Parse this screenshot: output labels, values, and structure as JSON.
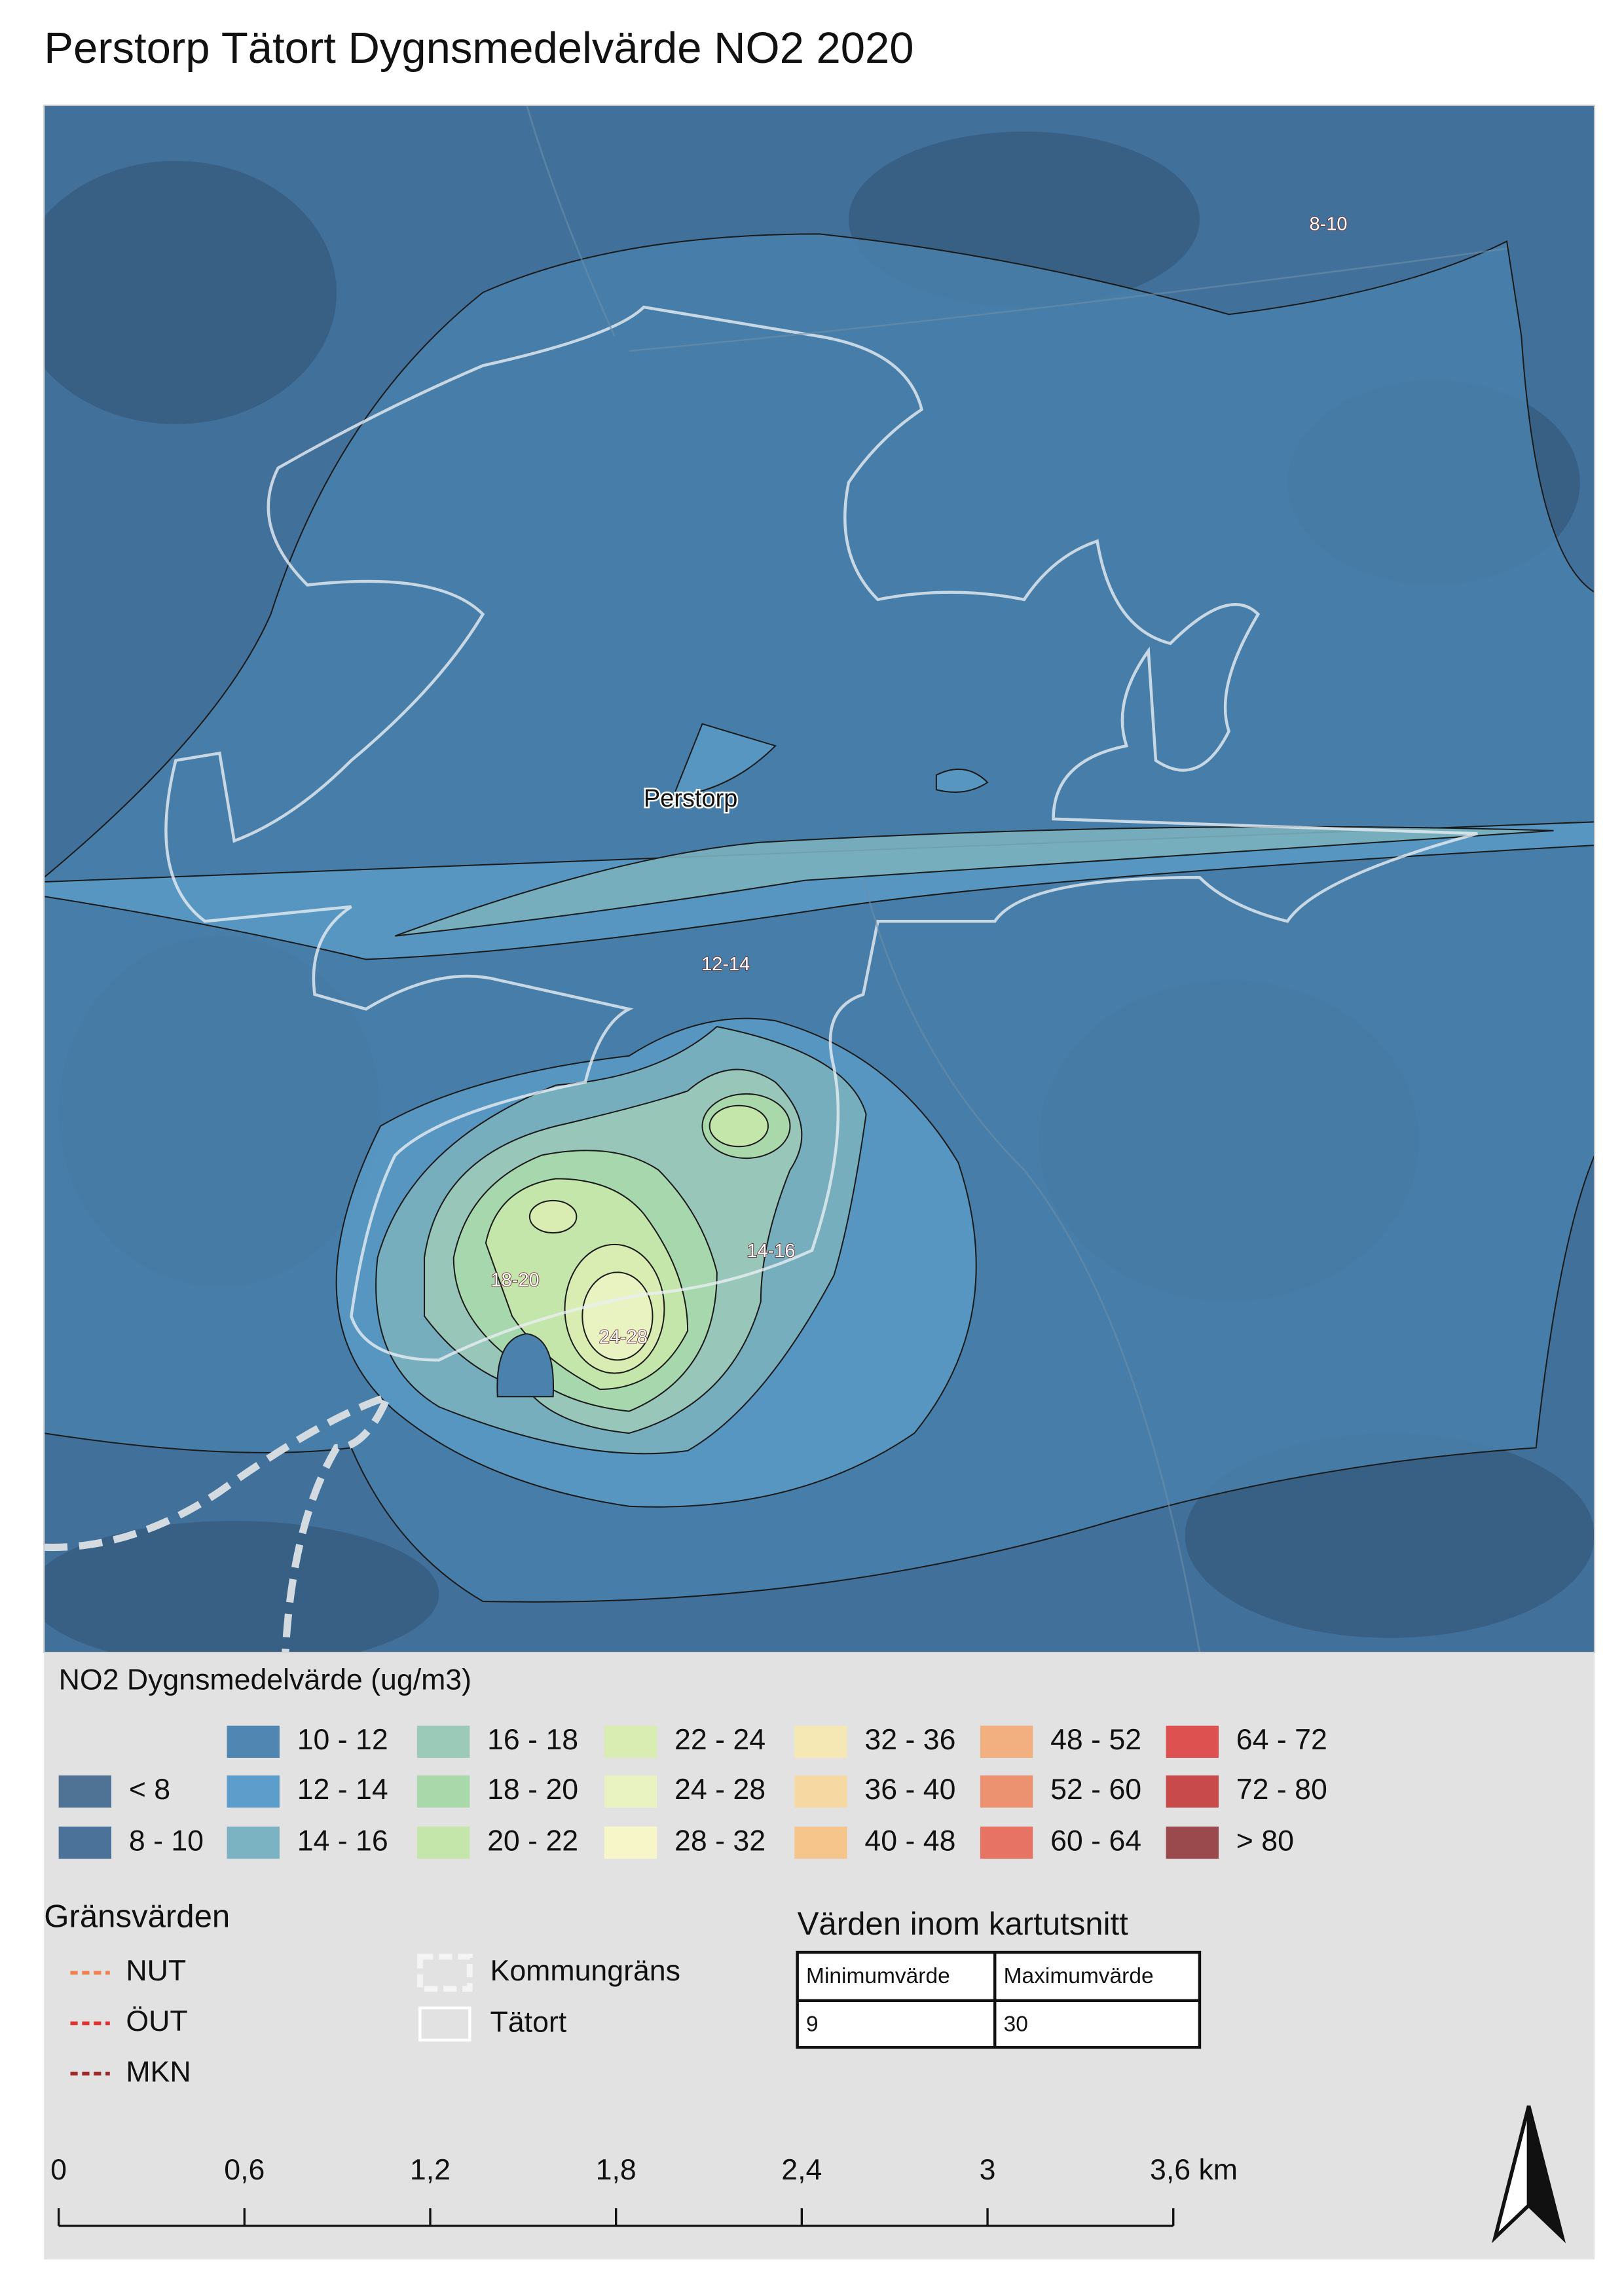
{
  "title": "Perstorp Tätort Dygnsmedelvärde NO2 2020",
  "map_labels": [
    "8-10",
    "Perstorp",
    "12-14",
    "14-16",
    "18-20",
    "24-28"
  ],
  "legend": {
    "title": "NO2 Dygnsmedelvärde (ug/m3)",
    "items": [
      {
        "label": "< 8",
        "color": "#4f7394"
      },
      {
        "label": "8 - 10",
        "color": "#4b7399"
      },
      {
        "label": "10 - 12",
        "color": "#4f86b2"
      },
      {
        "label": "12 - 14",
        "color": "#5c9dcb"
      },
      {
        "label": "14 - 16",
        "color": "#7bb3c3"
      },
      {
        "label": "16 - 18",
        "color": "#9ccab9"
      },
      {
        "label": "18 - 20",
        "color": "#a9d8ab"
      },
      {
        "label": "20 - 22",
        "color": "#c5e6aa"
      },
      {
        "label": "22 - 24",
        "color": "#d9edb2"
      },
      {
        "label": "24 - 28",
        "color": "#e9f3c2"
      },
      {
        "label": "28 - 32",
        "color": "#f7f6c9"
      },
      {
        "label": "32 - 36",
        "color": "#f6e8b4"
      },
      {
        "label": "36 - 40",
        "color": "#f6d9a2"
      },
      {
        "label": "40 - 48",
        "color": "#f5c58b"
      },
      {
        "label": "48 - 52",
        "color": "#f2af7f"
      },
      {
        "label": "52 - 60",
        "color": "#ec9271"
      },
      {
        "label": "60 - 64",
        "color": "#e77364"
      },
      {
        "label": "64 - 72",
        "color": "#dd5151"
      },
      {
        "label": "72 - 80",
        "color": "#c84a4b"
      },
      {
        "label": "> 80",
        "color": "#9a4a4c"
      }
    ]
  },
  "limits": {
    "title": "Gränsvärden",
    "items": [
      {
        "label": "NUT",
        "color": "#f08050"
      },
      {
        "label": "ÖUT",
        "color": "#e03030"
      },
      {
        "label": "MKN",
        "color": "#a02828"
      }
    ]
  },
  "boundaries": [
    "Kommungräns",
    "Tätort"
  ],
  "value_table": {
    "title": "Värden inom kartutsnitt",
    "header": [
      "Minimumvärde",
      "Maximumvärde"
    ],
    "rows": [
      [
        9,
        30
      ]
    ]
  },
  "scale_bar": [
    "0",
    "0,6",
    "1,2",
    "1,8",
    "2,4",
    "3",
    "3,6 km"
  ]
}
